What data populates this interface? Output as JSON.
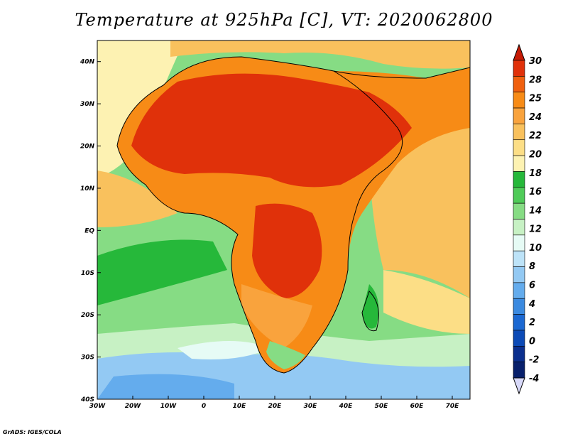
{
  "title": "Temperature at 925hPa [C], VT: 2020062800",
  "credit": "GrADS: IGES/COLA",
  "map": {
    "lon_range": [
      -30,
      75
    ],
    "lat_range": [
      -40,
      45
    ],
    "lon_ticks": [
      "30W",
      "20W",
      "10W",
      "0",
      "10E",
      "20E",
      "30E",
      "40E",
      "50E",
      "60E",
      "70E"
    ],
    "lat_ticks": [
      "40S",
      "30S",
      "20S",
      "10S",
      "EQ",
      "10N",
      "20N",
      "30N",
      "40N"
    ]
  },
  "colorbar": {
    "labels": [
      "30",
      "28",
      "25",
      "24",
      "22",
      "20",
      "18",
      "16",
      "14",
      "12",
      "10",
      "8",
      "6",
      "4",
      "2",
      "0",
      "-2",
      "-4"
    ],
    "colors": [
      "#e0310a",
      "#f0600f",
      "#f78b16",
      "#f9a33d",
      "#f9c15d",
      "#fcde86",
      "#fdf2b2",
      "#26b83a",
      "#4fcb58",
      "#86dc84",
      "#c7f1c4",
      "#e6fbf5",
      "#bde3f8",
      "#93c9f3",
      "#64aced",
      "#3b8ae0",
      "#1b68d2",
      "#0c4ab6",
      "#0b2f8e",
      "#08206c"
    ],
    "top_arrow_color": "#c61b05",
    "bottom_arrow_color": "#d8d9f9"
  }
}
